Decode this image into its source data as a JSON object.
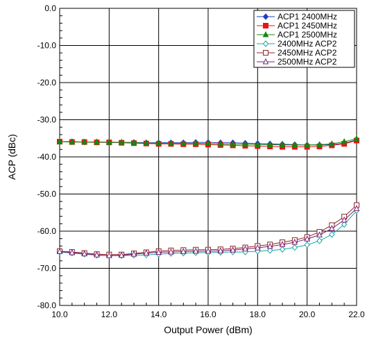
{
  "chart_data": {
    "type": "line",
    "title": "",
    "xlabel": "Output Power (dBm)",
    "ylabel": "ACP (dBc)",
    "xlim": [
      10.0,
      22.0
    ],
    "ylim": [
      -80.0,
      0.0
    ],
    "x_ticks": [
      "10.0",
      "12.0",
      "14.0",
      "16.0",
      "18.0",
      "20.0",
      "22.0"
    ],
    "y_ticks": [
      "0.0",
      "-10.0",
      "-20.0",
      "-30.0",
      "-40.0",
      "-50.0",
      "-60.0",
      "-70.0",
      "-80.0"
    ],
    "grid": true,
    "legend_position": "top-right",
    "x": [
      10.0,
      10.5,
      11.0,
      11.5,
      12.0,
      12.5,
      13.0,
      13.5,
      14.0,
      14.5,
      15.0,
      15.5,
      16.0,
      16.5,
      17.0,
      17.5,
      18.0,
      18.5,
      19.0,
      19.5,
      20.0,
      20.5,
      21.0,
      21.5,
      22.0
    ],
    "series": [
      {
        "name": "ACP1 2400MHz",
        "color": "#1f3fbf",
        "marker": "diamond-filled",
        "values": [
          -35.9,
          -35.9,
          -36.0,
          -36.0,
          -36.0,
          -36.1,
          -36.1,
          -36.2,
          -36.2,
          -36.2,
          -36.2,
          -36.1,
          -36.1,
          -36.2,
          -36.2,
          -36.3,
          -36.4,
          -36.5,
          -36.6,
          -36.7,
          -36.8,
          -36.8,
          -36.7,
          -36.3,
          -35.4
        ]
      },
      {
        "name": "ACP1 2450MHz",
        "color": "#ee1111",
        "marker": "square-filled",
        "values": [
          -35.9,
          -36.0,
          -36.0,
          -36.1,
          -36.1,
          -36.2,
          -36.3,
          -36.4,
          -36.5,
          -36.5,
          -36.6,
          -36.6,
          -36.7,
          -36.8,
          -36.9,
          -37.0,
          -37.1,
          -37.2,
          -37.3,
          -37.3,
          -37.3,
          -37.2,
          -36.9,
          -36.5,
          -35.6
        ]
      },
      {
        "name": "ACP1 2500MHz",
        "color": "#118811",
        "marker": "triangle-filled",
        "values": [
          -35.9,
          -36.0,
          -36.0,
          -36.0,
          -36.1,
          -36.1,
          -36.2,
          -36.3,
          -36.3,
          -36.4,
          -36.4,
          -36.4,
          -36.4,
          -36.5,
          -36.6,
          -36.6,
          -36.7,
          -36.7,
          -36.8,
          -36.8,
          -36.8,
          -36.7,
          -36.5,
          -35.9,
          -35.1
        ]
      },
      {
        "name": "2400MHz ACP2",
        "color": "#1aa3a3",
        "marker": "diamond-open",
        "values": [
          -65.6,
          -65.9,
          -66.2,
          -66.5,
          -66.6,
          -66.6,
          -66.5,
          -66.4,
          -66.2,
          -66.0,
          -65.9,
          -65.8,
          -65.8,
          -65.7,
          -65.6,
          -65.6,
          -65.4,
          -65.2,
          -64.9,
          -64.4,
          -63.7,
          -62.6,
          -60.9,
          -58.2,
          -54.5
        ]
      },
      {
        "name": "2450MHz ACP2",
        "color": "#8b2323",
        "marker": "square-open",
        "values": [
          -65.4,
          -65.6,
          -65.9,
          -66.2,
          -66.3,
          -66.3,
          -66.0,
          -65.7,
          -65.4,
          -65.2,
          -65.1,
          -65.0,
          -65.0,
          -64.9,
          -64.7,
          -64.4,
          -64.0,
          -63.6,
          -63.0,
          -62.4,
          -61.6,
          -60.2,
          -58.4,
          -56.1,
          -53.0
        ]
      },
      {
        "name": "2500MHz ACP2",
        "color": "#7a1f7a",
        "marker": "triangle-open",
        "values": [
          -65.5,
          -65.8,
          -66.1,
          -66.4,
          -66.6,
          -66.5,
          -66.2,
          -65.9,
          -65.7,
          -65.6,
          -65.5,
          -65.4,
          -65.4,
          -65.3,
          -65.1,
          -64.8,
          -64.5,
          -64.1,
          -63.6,
          -63.0,
          -62.1,
          -61.0,
          -59.3,
          -57.0,
          -53.9
        ]
      }
    ]
  }
}
